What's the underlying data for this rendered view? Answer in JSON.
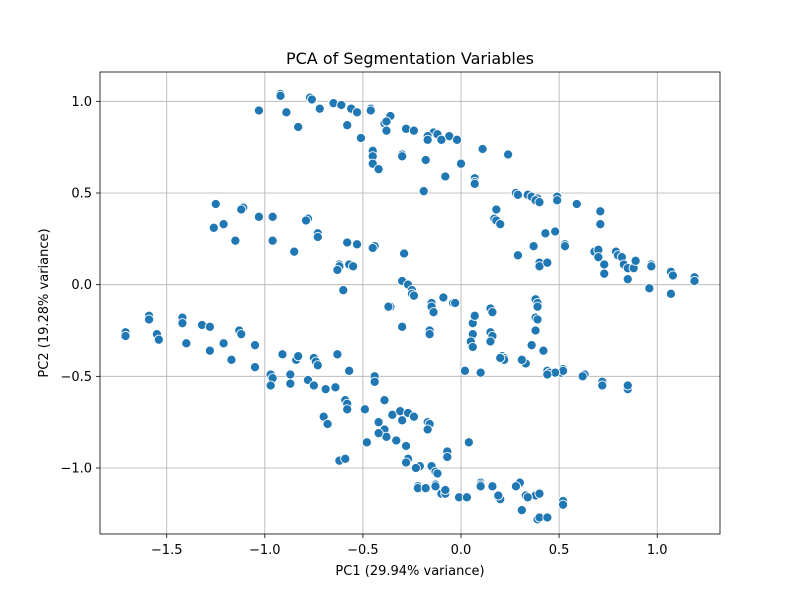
{
  "chart_data": {
    "type": "scatter",
    "title": "PCA of Segmentation Variables",
    "xlabel": "PC1 (29.94% variance)",
    "ylabel": "PC2 (19.28% variance)",
    "xlim": [
      -1.84,
      1.32
    ],
    "ylim": [
      -1.36,
      1.16
    ],
    "xticks": [
      -1.5,
      -1.0,
      -0.5,
      0.0,
      0.5,
      1.0
    ],
    "xtick_labels": [
      "−1.5",
      "−1.0",
      "−0.5",
      "0.0",
      "0.5",
      "1.0"
    ],
    "yticks": [
      -1.0,
      -0.5,
      0.0,
      0.5,
      1.0
    ],
    "ytick_labels": [
      "−1.0",
      "−0.5",
      "0.0",
      "0.5",
      "1.0"
    ],
    "grid": true,
    "point_color": "#1f77b4",
    "points": [
      [
        -0.92,
        1.04
      ],
      [
        -0.92,
        1.03
      ],
      [
        -0.77,
        1.02
      ],
      [
        -0.76,
        1.01
      ],
      [
        -0.65,
        0.99
      ],
      [
        -0.61,
        0.98
      ],
      [
        -0.56,
        0.96
      ],
      [
        -0.46,
        0.96
      ],
      [
        -0.46,
        0.95
      ],
      [
        -0.36,
        0.92
      ],
      [
        -1.03,
        0.95
      ],
      [
        -0.89,
        0.94
      ],
      [
        -0.72,
        0.96
      ],
      [
        -0.53,
        0.94
      ],
      [
        -0.39,
        0.88
      ],
      [
        -0.38,
        0.89
      ],
      [
        -0.58,
        0.87
      ],
      [
        -0.83,
        0.86
      ],
      [
        -0.28,
        0.85
      ],
      [
        -0.24,
        0.84
      ],
      [
        -0.38,
        0.84
      ],
      [
        -0.14,
        0.83
      ],
      [
        -0.12,
        0.82
      ],
      [
        -0.17,
        0.81
      ],
      [
        -0.06,
        0.81
      ],
      [
        -0.17,
        0.79
      ],
      [
        -0.1,
        0.79
      ],
      [
        -0.02,
        0.79
      ],
      [
        -0.51,
        0.8
      ],
      [
        0.11,
        0.74
      ],
      [
        -0.45,
        0.73
      ],
      [
        -0.45,
        0.7
      ],
      [
        -0.3,
        0.71
      ],
      [
        -0.3,
        0.7
      ],
      [
        0.24,
        0.71
      ],
      [
        -0.18,
        0.68
      ],
      [
        -0.45,
        0.66
      ],
      [
        -0.42,
        0.63
      ],
      [
        0.0,
        0.66
      ],
      [
        -0.08,
        0.59
      ],
      [
        0.07,
        0.58
      ],
      [
        0.07,
        0.56
      ],
      [
        0.07,
        0.55
      ],
      [
        -0.19,
        0.51
      ],
      [
        0.28,
        0.5
      ],
      [
        0.29,
        0.49
      ],
      [
        0.34,
        0.49
      ],
      [
        0.36,
        0.48
      ],
      [
        0.39,
        0.47
      ],
      [
        0.49,
        0.48
      ],
      [
        0.49,
        0.46
      ],
      [
        0.38,
        0.46
      ],
      [
        0.4,
        0.45
      ],
      [
        0.59,
        0.44
      ],
      [
        0.71,
        0.4
      ],
      [
        0.18,
        0.41
      ],
      [
        0.17,
        0.36
      ],
      [
        0.18,
        0.35
      ],
      [
        0.2,
        0.33
      ],
      [
        0.71,
        0.33
      ],
      [
        -1.25,
        0.44
      ],
      [
        -1.11,
        0.42
      ],
      [
        -1.12,
        0.41
      ],
      [
        -1.03,
        0.37
      ],
      [
        -0.96,
        0.37
      ],
      [
        -0.78,
        0.36
      ],
      [
        -0.79,
        0.35
      ],
      [
        -1.21,
        0.33
      ],
      [
        -1.26,
        0.31
      ],
      [
        -0.73,
        0.28
      ],
      [
        -0.73,
        0.26
      ],
      [
        -1.15,
        0.24
      ],
      [
        -0.96,
        0.24
      ],
      [
        -0.58,
        0.23
      ],
      [
        -0.44,
        0.21
      ],
      [
        -0.45,
        0.2
      ],
      [
        -0.53,
        0.22
      ],
      [
        -0.85,
        0.18
      ],
      [
        -0.29,
        0.17
      ],
      [
        -0.62,
        0.11
      ],
      [
        -0.62,
        0.1
      ],
      [
        -0.57,
        0.11
      ],
      [
        -0.55,
        0.1
      ],
      [
        -0.63,
        0.08
      ],
      [
        -0.3,
        0.02
      ],
      [
        -0.27,
        0.0
      ],
      [
        -0.6,
        -0.03
      ],
      [
        -0.25,
        -0.03
      ],
      [
        -0.25,
        -0.05
      ],
      [
        -0.24,
        -0.06
      ],
      [
        -0.36,
        -0.12
      ],
      [
        -0.37,
        -0.12
      ],
      [
        -0.15,
        -0.1
      ],
      [
        -0.15,
        -0.12
      ],
      [
        -0.14,
        -0.15
      ],
      [
        -0.09,
        -0.07
      ],
      [
        -0.04,
        -0.1
      ],
      [
        -0.03,
        -0.1
      ],
      [
        0.15,
        -0.13
      ],
      [
        0.16,
        -0.15
      ],
      [
        0.38,
        -0.08
      ],
      [
        0.39,
        -0.1
      ],
      [
        0.39,
        -0.12
      ],
      [
        0.38,
        -0.18
      ],
      [
        0.39,
        -0.19
      ],
      [
        0.38,
        -0.25
      ],
      [
        0.06,
        -0.21
      ],
      [
        0.06,
        -0.27
      ],
      [
        0.15,
        -0.26
      ],
      [
        0.16,
        -0.28
      ],
      [
        -0.3,
        -0.23
      ],
      [
        -0.16,
        -0.25
      ],
      [
        -0.16,
        -0.27
      ],
      [
        0.05,
        -0.31
      ],
      [
        0.06,
        -0.34
      ],
      [
        0.15,
        -0.31
      ],
      [
        0.21,
        -0.39
      ],
      [
        0.36,
        -0.33
      ],
      [
        0.42,
        -0.36
      ],
      [
        0.07,
        -0.17
      ],
      [
        0.02,
        -0.47
      ],
      [
        0.22,
        -0.4
      ],
      [
        0.22,
        -0.41
      ],
      [
        0.33,
        -0.43
      ],
      [
        0.44,
        -0.47
      ],
      [
        0.45,
        -0.48
      ],
      [
        0.51,
        -0.48
      ],
      [
        0.52,
        -0.46
      ],
      [
        0.52,
        -0.47
      ],
      [
        0.48,
        -0.48
      ],
      [
        0.63,
        -0.49
      ],
      [
        0.62,
        -0.5
      ],
      [
        0.72,
        -0.53
      ],
      [
        0.72,
        -0.55
      ],
      [
        0.85,
        -0.57
      ],
      [
        0.85,
        -0.55
      ],
      [
        0.44,
        -0.49
      ],
      [
        0.1,
        -0.48
      ],
      [
        0.2,
        -0.4
      ],
      [
        0.31,
        -0.41
      ],
      [
        0.37,
        0.21
      ],
      [
        0.4,
        0.12
      ],
      [
        0.4,
        0.1
      ],
      [
        0.43,
        0.28
      ],
      [
        0.48,
        0.29
      ],
      [
        0.53,
        0.22
      ],
      [
        0.53,
        0.21
      ],
      [
        0.68,
        0.18
      ],
      [
        0.7,
        0.19
      ],
      [
        0.7,
        0.15
      ],
      [
        0.73,
        0.11
      ],
      [
        0.73,
        0.06
      ],
      [
        0.79,
        0.18
      ],
      [
        0.8,
        0.16
      ],
      [
        0.82,
        0.15
      ],
      [
        0.83,
        0.11
      ],
      [
        0.85,
        0.09
      ],
      [
        0.88,
        0.09
      ],
      [
        0.89,
        0.13
      ],
      [
        0.97,
        0.11
      ],
      [
        0.97,
        0.1
      ],
      [
        0.85,
        0.03
      ],
      [
        0.96,
        -0.02
      ],
      [
        1.07,
        0.07
      ],
      [
        1.08,
        0.05
      ],
      [
        1.07,
        -0.05
      ],
      [
        1.19,
        0.04
      ],
      [
        1.19,
        0.02
      ],
      [
        0.29,
        0.16
      ],
      [
        0.44,
        0.12
      ],
      [
        -1.71,
        -0.26
      ],
      [
        -1.71,
        -0.28
      ],
      [
        -1.59,
        -0.17
      ],
      [
        -1.59,
        -0.19
      ],
      [
        -1.55,
        -0.27
      ],
      [
        -1.54,
        -0.3
      ],
      [
        -1.42,
        -0.18
      ],
      [
        -1.42,
        -0.21
      ],
      [
        -1.4,
        -0.32
      ],
      [
        -1.32,
        -0.22
      ],
      [
        -1.28,
        -0.23
      ],
      [
        -1.28,
        -0.36
      ],
      [
        -1.13,
        -0.25
      ],
      [
        -1.12,
        -0.27
      ],
      [
        -1.05,
        -0.33
      ],
      [
        -1.17,
        -0.41
      ],
      [
        -1.21,
        -0.32
      ],
      [
        -0.97,
        -0.49
      ],
      [
        -0.96,
        -0.51
      ],
      [
        -0.97,
        -0.55
      ],
      [
        -0.91,
        -0.38
      ],
      [
        -0.87,
        -0.49
      ],
      [
        -0.84,
        -0.41
      ],
      [
        -0.83,
        -0.39
      ],
      [
        -0.75,
        -0.4
      ],
      [
        -0.74,
        -0.42
      ],
      [
        -0.73,
        -0.44
      ],
      [
        -0.63,
        -0.38
      ],
      [
        -0.78,
        -0.52
      ],
      [
        -0.75,
        -0.55
      ],
      [
        -0.69,
        -0.57
      ],
      [
        -0.64,
        -0.56
      ],
      [
        -0.57,
        -0.47
      ],
      [
        -0.44,
        -0.5
      ],
      [
        -0.44,
        -0.53
      ],
      [
        -0.87,
        -0.54
      ],
      [
        -1.05,
        -0.45
      ],
      [
        -0.7,
        -0.72
      ],
      [
        -0.68,
        -0.76
      ],
      [
        -0.59,
        -0.63
      ],
      [
        -0.58,
        -0.65
      ],
      [
        -0.58,
        -0.68
      ],
      [
        -0.49,
        -0.68
      ],
      [
        -0.39,
        -0.63
      ],
      [
        -0.35,
        -0.71
      ],
      [
        -0.31,
        -0.69
      ],
      [
        -0.27,
        -0.7
      ],
      [
        -0.42,
        -0.75
      ],
      [
        -0.39,
        -0.79
      ],
      [
        -0.38,
        -0.83
      ],
      [
        -0.42,
        -0.81
      ],
      [
        -0.3,
        -0.74
      ],
      [
        -0.24,
        -0.72
      ],
      [
        -0.17,
        -0.75
      ],
      [
        -0.16,
        -0.76
      ],
      [
        -0.17,
        -0.79
      ],
      [
        -0.48,
        -0.86
      ],
      [
        -0.33,
        -0.85
      ],
      [
        -0.28,
        -0.88
      ],
      [
        -0.62,
        -0.96
      ],
      [
        -0.59,
        -0.95
      ],
      [
        -0.27,
        -0.95
      ],
      [
        -0.28,
        -0.97
      ],
      [
        -0.21,
        -0.99
      ],
      [
        -0.23,
        -1.0
      ],
      [
        -0.15,
        -0.99
      ],
      [
        -0.13,
        -1.02
      ],
      [
        -0.12,
        -1.03
      ],
      [
        -0.07,
        -0.91
      ],
      [
        -0.07,
        -0.94
      ],
      [
        0.04,
        -0.86
      ],
      [
        -0.22,
        -1.1
      ],
      [
        -0.22,
        -1.11
      ],
      [
        -0.18,
        -1.11
      ],
      [
        -0.13,
        -1.09
      ],
      [
        -0.13,
        -1.1
      ],
      [
        -0.1,
        -1.14
      ],
      [
        -0.08,
        -1.14
      ],
      [
        -0.01,
        -1.16
      ],
      [
        0.1,
        -1.08
      ],
      [
        0.1,
        -1.09
      ],
      [
        0.16,
        -1.1
      ],
      [
        0.19,
        -1.16
      ],
      [
        0.2,
        -1.17
      ],
      [
        0.19,
        -1.15
      ],
      [
        0.3,
        -1.08
      ],
      [
        0.33,
        -1.15
      ],
      [
        0.38,
        -1.15
      ],
      [
        0.4,
        -1.14
      ],
      [
        0.39,
        -1.28
      ],
      [
        0.4,
        -1.27
      ],
      [
        0.31,
        -1.23
      ],
      [
        0.52,
        -1.18
      ],
      [
        0.52,
        -1.2
      ],
      [
        0.28,
        -1.1
      ],
      [
        0.03,
        -1.16
      ],
      [
        0.1,
        -1.1
      ],
      [
        0.34,
        -1.16
      ],
      [
        0.44,
        -1.27
      ],
      [
        -0.08,
        -1.12
      ]
    ]
  }
}
